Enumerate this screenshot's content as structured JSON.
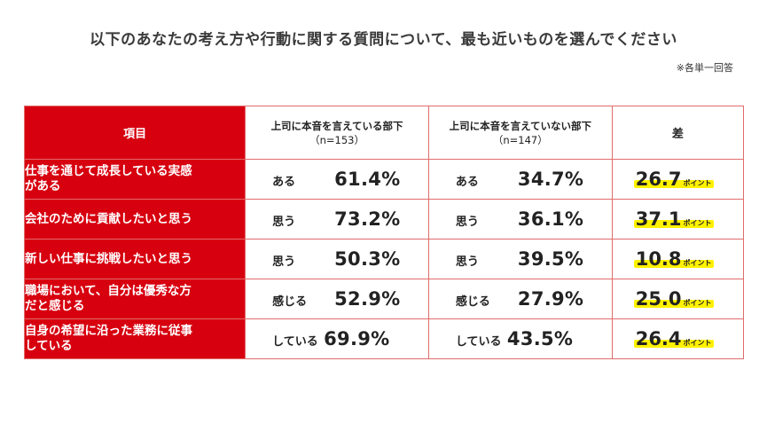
{
  "title": "以下のあなたの考え方や行動に関する質問について、最も近いものを選んでください",
  "note": "※各単一回答",
  "table": {
    "header": {
      "item": "項目",
      "col1": "上司に本音を言えている部下",
      "col1_n": "（n=153）",
      "col2": "上司に本音を言えていない部下",
      "col2_n": "（n=147）",
      "diff": "差"
    },
    "unit": "ポイント",
    "rows": [
      {
        "item_line1": "仕事を通じて成長している実感",
        "item_line2": "がある",
        "ans": "ある",
        "v1": "61.4%",
        "v2": "34.7%",
        "diff": "26.7"
      },
      {
        "item_line1": "会社のために貢献したいと思う",
        "item_line2": "",
        "ans": "思う",
        "v1": "73.2%",
        "v2": "36.1%",
        "diff": "37.1"
      },
      {
        "item_line1": "新しい仕事に挑戦したいと思う",
        "item_line2": "",
        "ans": "思う",
        "v1": "50.3%",
        "v2": "39.5%",
        "diff": "10.8"
      },
      {
        "item_line1": "職場において、自分は優秀な方",
        "item_line2": "だと感じる",
        "ans": "感じる",
        "v1": "52.9%",
        "v2": "27.9%",
        "diff": "25.0"
      },
      {
        "item_line1": "自身の希望に沿った業務に従事",
        "item_line2": "している",
        "ans": "している",
        "v1": "69.9%",
        "v2": "43.5%",
        "diff": "26.4"
      }
    ]
  },
  "colors": {
    "accent": "#d7000f",
    "highlight": "#fff200",
    "border": "#e16b6b"
  }
}
